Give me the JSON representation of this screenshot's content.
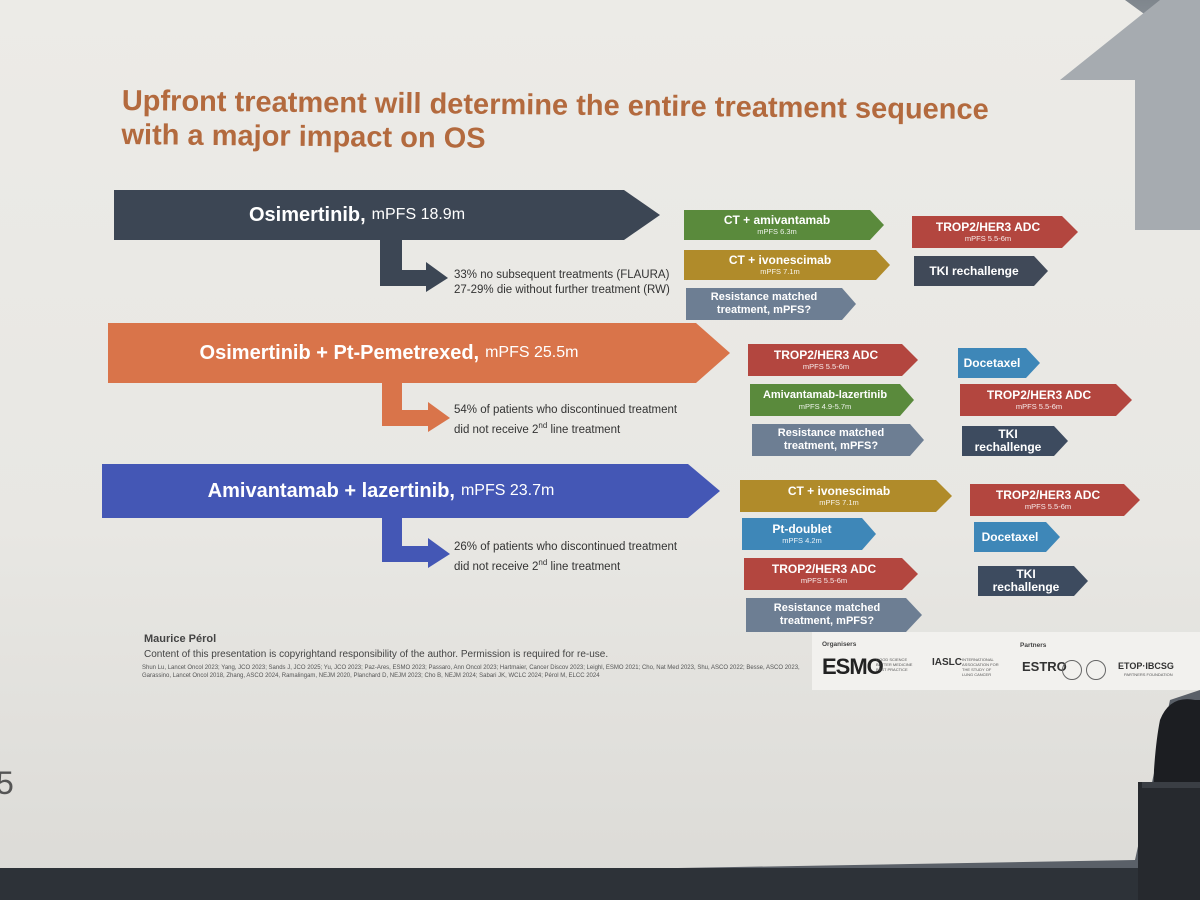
{
  "title": "Upfront treatment will determine the entire treatment sequence with a major impact on OS",
  "rows": [
    {
      "drug": "Osimertinib,",
      "mpfs": "mPFS 18.9m",
      "note_line1": "33% no subsequent treatments (FLAURA)",
      "note_line2": "27-29% die without further treatment (RW)",
      "second_line": [
        {
          "label": "CT + amivantamab",
          "sub": "mPFS 6.3m"
        },
        {
          "label": "CT + ivonescimab",
          "sub": "mPFS 7.1m"
        },
        {
          "label": "Resistance matched treatment, mPFS?",
          "sub": ""
        }
      ],
      "third_line": [
        {
          "label": "TROP2/HER3 ADC",
          "sub": "mPFS 5.5-6m"
        },
        {
          "label": "TKI rechallenge",
          "sub": ""
        }
      ]
    },
    {
      "drug": "Osimertinib + Pt-Pemetrexed,",
      "mpfs": "mPFS 25.5m",
      "note_pre": "54% of patients who discontinued treatment",
      "note_mid": "did not receive 2",
      "note_sup": "nd",
      "note_post": " line treatment",
      "second_line": [
        {
          "label": "TROP2/HER3 ADC",
          "sub": "mPFS 5.5-6m"
        },
        {
          "label": "Amivantamab-lazertinib",
          "sub": "mPFS 4.9-5.7m"
        },
        {
          "label": "Resistance matched treatment, mPFS?",
          "sub": ""
        }
      ],
      "third_line": [
        {
          "label": "Docetaxel",
          "sub": ""
        },
        {
          "label": "TROP2/HER3 ADC",
          "sub": "mPFS 5.5-6m"
        },
        {
          "label": "TKI rechallenge",
          "sub": ""
        }
      ]
    },
    {
      "drug": "Amivantamab + lazertinib,",
      "mpfs": "mPFS 23.7m",
      "note_pre": "26% of patients who discontinued treatment",
      "note_mid": "did not receive 2",
      "note_sup": "nd",
      "note_post": " line treatment",
      "second_line": [
        {
          "label": "CT + ivonescimab",
          "sub": "mPFS 7.1m"
        },
        {
          "label": "Pt-doublet",
          "sub": "mPFS 4.2m"
        },
        {
          "label": "TROP2/HER3 ADC",
          "sub": "mPFS 5.5-6m"
        },
        {
          "label": "Resistance matched treatment, mPFS?",
          "sub": ""
        }
      ],
      "third_line": [
        {
          "label": "TROP2/HER3 ADC",
          "sub": "mPFS 5.5-6m"
        },
        {
          "label": "Docetaxel",
          "sub": ""
        },
        {
          "label": "TKI rechallenge",
          "sub": ""
        }
      ]
    }
  ],
  "footer": {
    "author": "Maurice Pérol",
    "copyright": "Content of this presentation is copyrightand responsibility of the author. Permission is required for re-use.",
    "references": "Shun Lu, Lancet Oncol 2023; Yang, JCO 2023; Sands J, JCO 2025; Yu, JCO 2023; Paz-Ares, ESMO 2023; Passaro, Ann Oncol 2023; Hartmaier, Cancer Discov 2023; Leighl, ESMO 2021; Cho, Nat Med 2023, Shu, ASCO 2022; Besse, ASCO 2023, Garassino, Lancet Oncol 2018, Zhang, ASCO 2024, Ramalingam, NEJM 2020, Planchard D, NEJM 2023; Cho B, NEJM 2024; Sabari JK, WCLC 2024; Pérol M, ELCC 2024"
  },
  "logos": {
    "organisers_label": "Organisers",
    "partners_label": "Partners",
    "esmo": "ESMO",
    "esmo_small": "GOOD SCIENCE BETTER MEDICINE BEST PRACTICE",
    "iaslc": "IASLC",
    "iaslc_small": "INTERNATIONAL ASSOCIATION FOR THE STUDY OF LUNG CANCER",
    "estro": "ESTRO",
    "etop": "ETOP·IBCSG",
    "etop_small": "PARTNERS FOUNDATION"
  },
  "page_number": "5",
  "colors": {
    "title": "#b36a3e",
    "row1_arrow": "#3c4654",
    "row2_arrow": "#d9744a",
    "row3_arrow": "#4457b5"
  }
}
